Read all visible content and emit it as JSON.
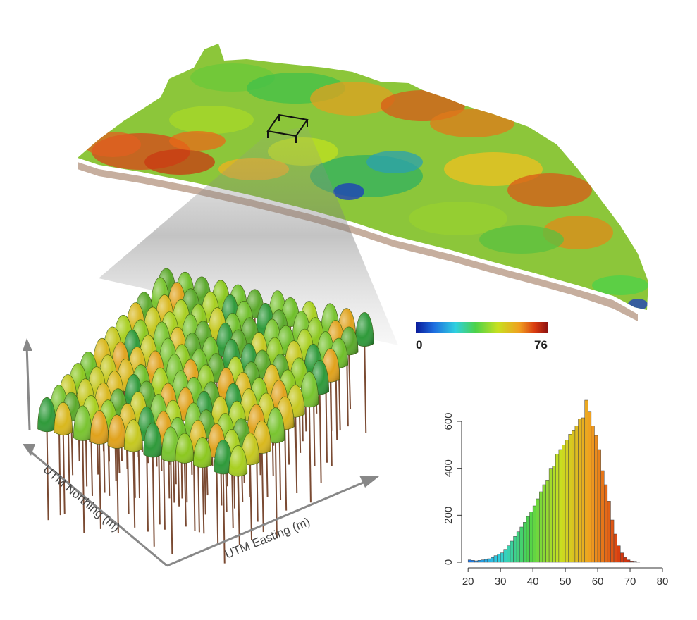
{
  "figure": {
    "colorbar": {
      "min_label": "0",
      "max_label": "76",
      "colors": [
        "#0a1a9a",
        "#1e6fe0",
        "#2fd0e0",
        "#4cd24a",
        "#c8e020",
        "#f0a020",
        "#d83a10",
        "#8a1010"
      ]
    },
    "tree_plot": {
      "x_axis_label": "UTM Easting (m)",
      "y_axis_label": "UTM Northing (m)"
    }
  },
  "chart_data": {
    "type": "bar",
    "title": "",
    "xlabel": "",
    "ylabel": "",
    "xlim": [
      18,
      80
    ],
    "ylim": [
      0,
      720
    ],
    "x_ticks": [
      "20",
      "30",
      "40",
      "50",
      "60",
      "70",
      "80"
    ],
    "y_ticks": [
      "0",
      "200",
      "400",
      "600"
    ],
    "bin_width": 1,
    "bin_starts": [
      20,
      21,
      22,
      23,
      24,
      25,
      26,
      27,
      28,
      29,
      30,
      31,
      32,
      33,
      34,
      35,
      36,
      37,
      38,
      39,
      40,
      41,
      42,
      43,
      44,
      45,
      46,
      47,
      48,
      49,
      50,
      51,
      52,
      53,
      54,
      55,
      56,
      57,
      58,
      59,
      60,
      61,
      62,
      63,
      64,
      65,
      66,
      67,
      68,
      69,
      70,
      71,
      72
    ],
    "values": [
      10,
      8,
      6,
      8,
      10,
      12,
      15,
      20,
      28,
      35,
      40,
      55,
      70,
      90,
      110,
      130,
      150,
      170,
      195,
      215,
      240,
      270,
      300,
      330,
      350,
      400,
      410,
      460,
      480,
      500,
      520,
      545,
      560,
      580,
      610,
      615,
      690,
      640,
      580,
      540,
      480,
      390,
      330,
      260,
      180,
      120,
      70,
      40,
      20,
      10,
      5,
      4,
      2
    ]
  }
}
